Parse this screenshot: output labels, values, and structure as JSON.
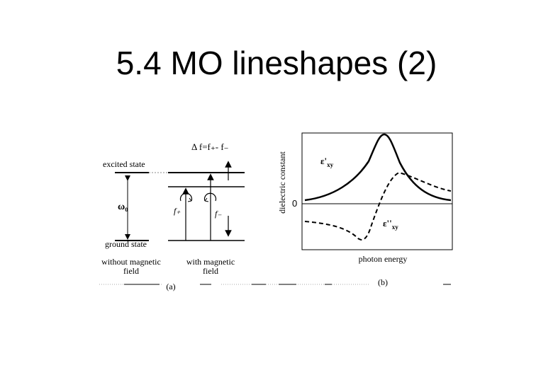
{
  "slide": {
    "title": "5.4 MO lineshapes (2)"
  },
  "panel_a": {
    "delta_label": "Δ f=f₊- f₋",
    "excited_state": "excited state",
    "ground_state": "ground state",
    "omega_label": "ω₀",
    "f_plus": "f₊",
    "f_minus": "f₋",
    "without_label_1": "without magnetic",
    "without_label_2": "field",
    "with_label_1": "with magnetic",
    "with_label_2": "field",
    "caption": "(a)"
  },
  "panel_b": {
    "ylabel": "dielectric constant",
    "xlabel": "photon energy",
    "zero_label": "0",
    "eps_real": "ε'",
    "eps_real_sub": "xy",
    "eps_imag": "ε''",
    "eps_imag_sub": "xy",
    "caption": "(b)"
  }
}
